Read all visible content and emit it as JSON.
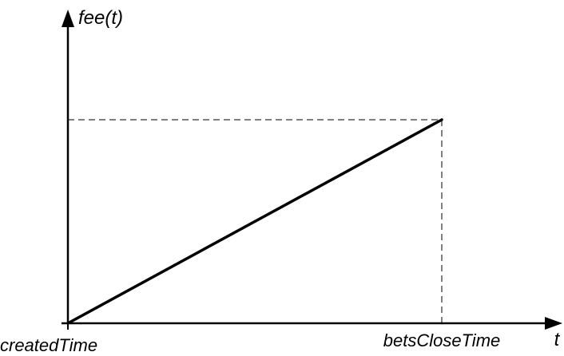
{
  "chart_data": {
    "type": "line",
    "ylabel": "fee(t)",
    "xlabel": "t",
    "x_tick_labels": [
      "createdTime",
      "betsCloseTime"
    ],
    "series": [
      {
        "points": [
          {
            "x": "createdTime",
            "y": 0
          },
          {
            "x": "betsCloseTime",
            "y": 1
          }
        ]
      }
    ],
    "guides": {
      "style": "dashed"
    },
    "colors": {
      "line": "#000000",
      "axis": "#000000",
      "guide": "#000000"
    }
  }
}
